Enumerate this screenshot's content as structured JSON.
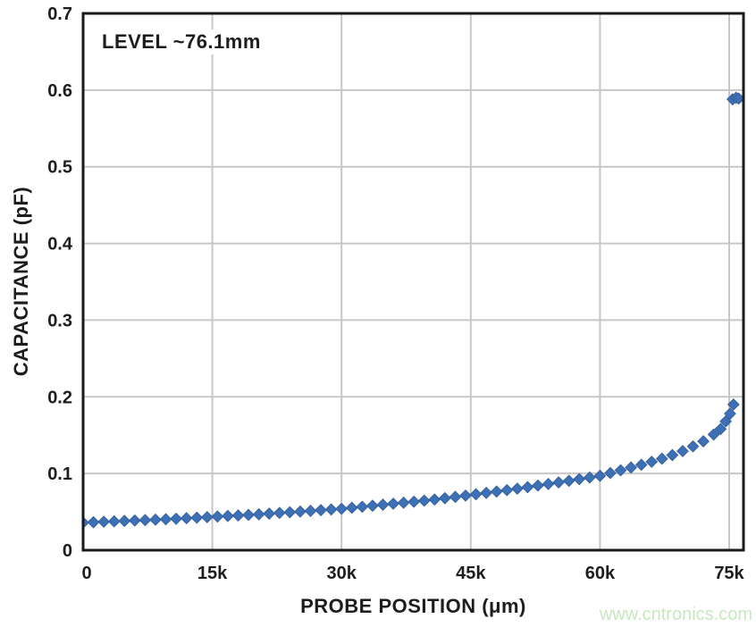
{
  "page": {
    "background": "#ffffff"
  },
  "watermark": {
    "text": "www.cntronics.com",
    "color": "#c8e7c0"
  },
  "chart_data": {
    "type": "scatter",
    "title": "",
    "annotation": "LEVEL ~76.1mm",
    "xlabel": "PROBE POSITION (μm)",
    "ylabel": "CAPACITANCE (pF)",
    "xlim": [
      0,
      76600
    ],
    "ylim": [
      0,
      0.7
    ],
    "grid": true,
    "legend": "none",
    "x_ticks": [
      {
        "v": 0,
        "label": "0"
      },
      {
        "v": 15000,
        "label": "15k"
      },
      {
        "v": 30000,
        "label": "30k"
      },
      {
        "v": 45000,
        "label": "45k"
      },
      {
        "v": 60000,
        "label": "60k"
      },
      {
        "v": 75000,
        "label": "75k"
      }
    ],
    "y_ticks": [
      {
        "v": 0,
        "label": "0"
      },
      {
        "v": 0.1,
        "label": "0.1"
      },
      {
        "v": 0.2,
        "label": "0.2"
      },
      {
        "v": 0.3,
        "label": "0.3"
      },
      {
        "v": 0.4,
        "label": "0.4"
      },
      {
        "v": 0.5,
        "label": "0.5"
      },
      {
        "v": 0.6,
        "label": "0.6"
      },
      {
        "v": 0.7,
        "label": "0.7"
      }
    ],
    "colors": {
      "marker_fill": "#3e70b6",
      "marker_edge": "#35619c",
      "grid": "#c7c7c7",
      "axis": "#1a1a1a",
      "text": "#1d1d1d"
    },
    "marker": {
      "shape": "diamond",
      "size": 12
    },
    "series": [
      {
        "name": "capacitance-vs-probe-position",
        "x": [
          0,
          1200,
          2400,
          3600,
          4800,
          6000,
          7200,
          8400,
          9600,
          10800,
          12000,
          13200,
          14400,
          15600,
          16800,
          18000,
          19200,
          20400,
          21600,
          22800,
          24000,
          25200,
          26400,
          27600,
          28800,
          30000,
          31200,
          32400,
          33600,
          34800,
          36000,
          37200,
          38400,
          39600,
          40800,
          42000,
          43200,
          44400,
          45600,
          46800,
          48000,
          49200,
          50400,
          51600,
          52800,
          54000,
          55200,
          56400,
          57600,
          58800,
          60000,
          61200,
          62400,
          63600,
          64800,
          66000,
          67200,
          68400,
          69600,
          70800,
          72000,
          73200,
          74000,
          74600,
          75100,
          75500
        ],
        "y": [
          0.036,
          0.0365,
          0.0371,
          0.0376,
          0.0382,
          0.0387,
          0.0392,
          0.0398,
          0.0403,
          0.041,
          0.0417,
          0.0424,
          0.0431,
          0.0439,
          0.0446,
          0.0453,
          0.046,
          0.0468,
          0.0477,
          0.0486,
          0.0495,
          0.0504,
          0.0513,
          0.0522,
          0.0531,
          0.054,
          0.0553,
          0.0566,
          0.058,
          0.0593,
          0.0606,
          0.0619,
          0.0632,
          0.0646,
          0.0661,
          0.0678,
          0.0695,
          0.0712,
          0.0729,
          0.0747,
          0.0765,
          0.0783,
          0.0802,
          0.0822,
          0.0843,
          0.0863,
          0.0884,
          0.0905,
          0.0927,
          0.0948,
          0.097,
          0.1006,
          0.1042,
          0.1078,
          0.1114,
          0.1153,
          0.1193,
          0.124,
          0.1292,
          0.1354,
          0.142,
          0.1508,
          0.158,
          0.168,
          0.178,
          0.19
        ]
      },
      {
        "name": "outlier-cluster-at-liquid-level",
        "x": [
          75400,
          75800,
          76100
        ],
        "y": [
          0.588,
          0.59,
          0.589
        ]
      }
    ]
  }
}
